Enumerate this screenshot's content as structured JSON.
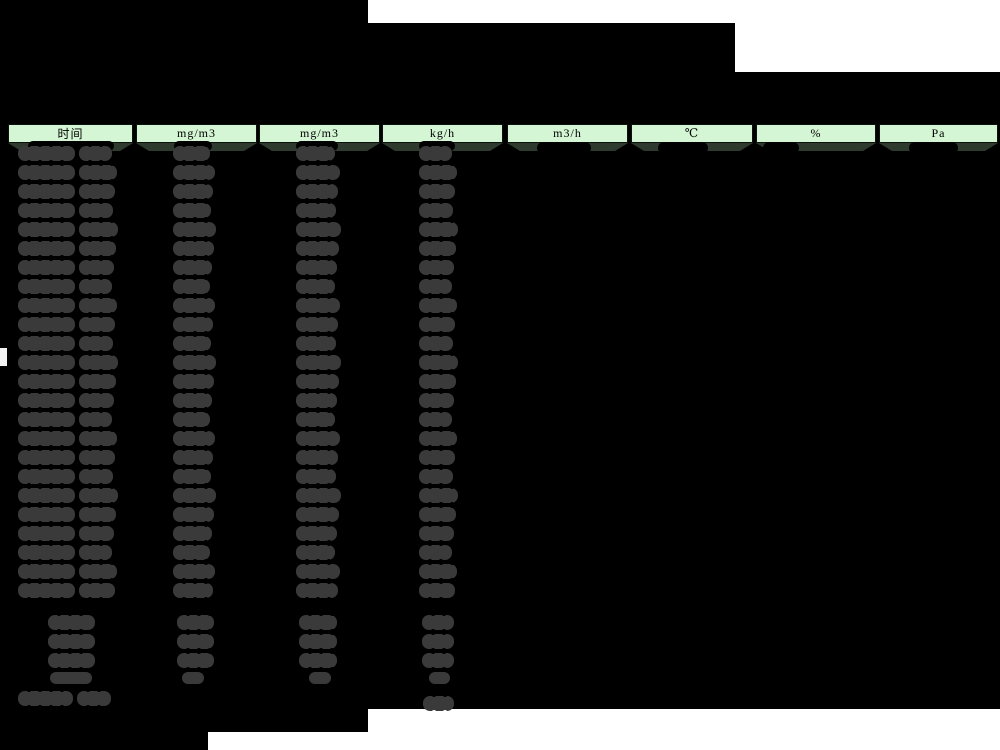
{
  "report": {
    "description": "Redacted emissions monitoring data table",
    "values_redacted": true,
    "colors": {
      "page_background": "#ffffff",
      "redaction_fill": "#000000",
      "header_background": "#d4f6d4",
      "header_text": "#000000",
      "blob": "#3a3a3a",
      "under_header_strip": "#2e3a2e"
    },
    "table": {
      "headers": [
        "时间",
        "mg/m3",
        "mg/m3",
        "kg/h",
        "m3/h",
        "℃",
        "%",
        "Pa"
      ],
      "data_row_count": 24,
      "summary_row_count": 5
    }
  }
}
